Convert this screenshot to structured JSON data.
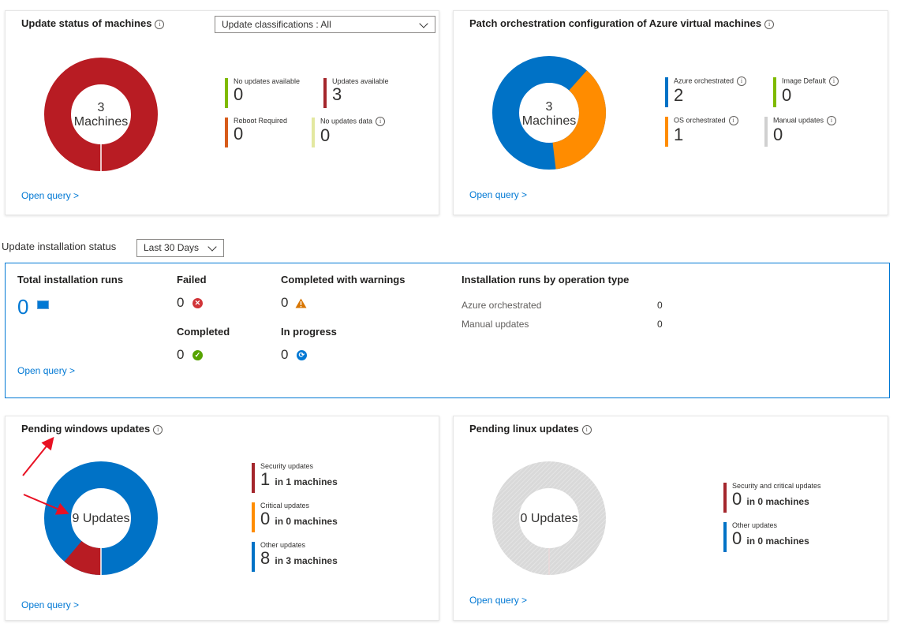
{
  "update_status": {
    "title": "Update status of machines",
    "classifications_select": "Update classifications : All",
    "donut_count": "3",
    "donut_unit": "Machines",
    "legend": [
      {
        "label": "No updates available",
        "value": "0",
        "color": "#7fba00"
      },
      {
        "label": "Updates available",
        "value": "3",
        "color": "#a4262c"
      },
      {
        "label": "Reboot Required",
        "value": "0",
        "color": "#d75b1a"
      },
      {
        "label": "No updates data",
        "value": "0",
        "color": "#e3e8a0"
      }
    ],
    "open_query": "Open query >"
  },
  "patch_orchestration": {
    "title": "Patch orchestration configuration of Azure virtual machines",
    "donut_count": "3",
    "donut_unit": "Machines",
    "legend": [
      {
        "label": "Azure orchestrated",
        "value": "2",
        "color": "#0072c6"
      },
      {
        "label": "Image Default",
        "value": "0",
        "color": "#7fba00"
      },
      {
        "label": "OS orchestrated",
        "value": "1",
        "color": "#ff8c00"
      },
      {
        "label": "Manual updates",
        "value": "0",
        "color": "#d0d0d0"
      }
    ],
    "open_query": "Open query >"
  },
  "installation": {
    "section_label": "Update installation status",
    "range_select": "Last 30 Days",
    "total_label": "Total installation runs",
    "total_value": "0",
    "failed_label": "Failed",
    "failed_value": "0",
    "warnings_label": "Completed with warnings",
    "warnings_value": "0",
    "completed_label": "Completed",
    "completed_value": "0",
    "in_progress_label": "In progress",
    "in_progress_value": "0",
    "by_type_label": "Installation runs by operation type",
    "by_type": [
      {
        "name": "Azure orchestrated",
        "value": "0"
      },
      {
        "name": "Manual updates",
        "value": "0"
      }
    ],
    "open_query": "Open query >"
  },
  "pending_windows": {
    "title": "Pending windows updates",
    "donut_label": "9 Updates",
    "legend": [
      {
        "label": "Security updates",
        "value": "1",
        "suffix": "in 1 machines",
        "color": "#a4262c"
      },
      {
        "label": "Critical updates",
        "value": "0",
        "suffix": "in 0 machines",
        "color": "#ff8c00"
      },
      {
        "label": "Other updates",
        "value": "8",
        "suffix": "in 3 machines",
        "color": "#0072c6"
      }
    ],
    "open_query": "Open query >"
  },
  "pending_linux": {
    "title": "Pending linux updates",
    "donut_label": "0 Updates",
    "legend": [
      {
        "label": "Security and critical updates",
        "value": "0",
        "suffix": "in 0 machines",
        "color": "#a4262c"
      },
      {
        "label": "Other updates",
        "value": "0",
        "suffix": "in 0 machines",
        "color": "#0072c6"
      }
    ],
    "open_query": "Open query >"
  },
  "colors": {
    "accent": "#0078d4",
    "red": "#a4262c",
    "blue": "#0072c6",
    "orange": "#ff8c00",
    "green": "#7fba00",
    "annotation_arrow": "#e81123"
  }
}
